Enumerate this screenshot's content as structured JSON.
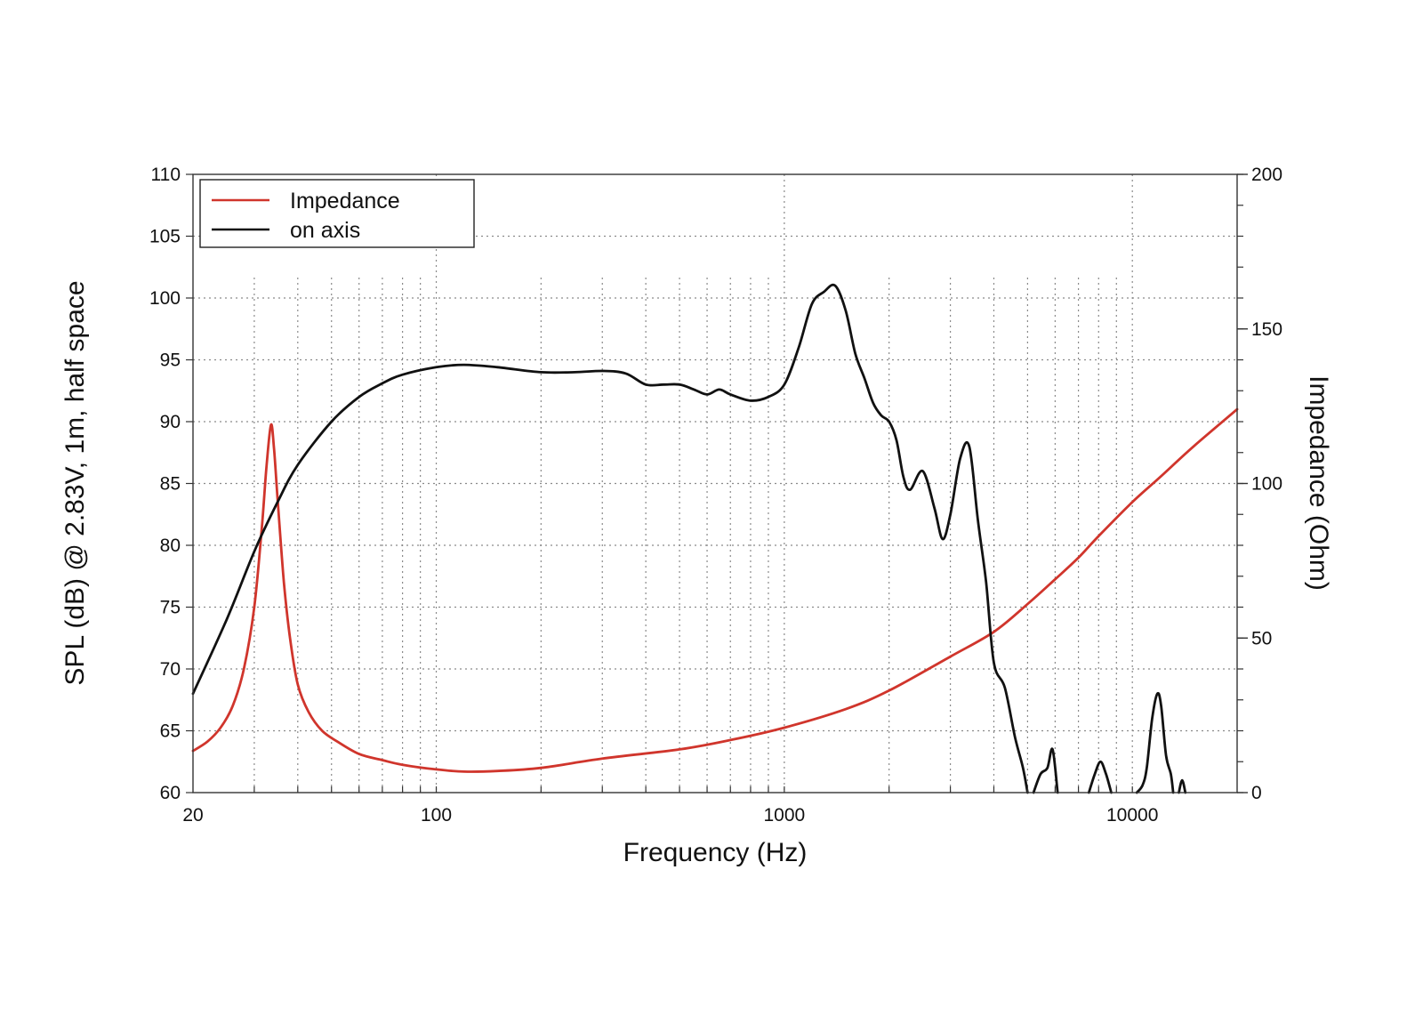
{
  "chart_data": {
    "type": "line",
    "xlabel": "Frequency (Hz)",
    "ylabel": "SPL (dB) @ 2.83V, 1m, half space",
    "y2label": "Impedance (Ohm)",
    "x_scale": "log",
    "xlim": [
      20,
      20000
    ],
    "ylim": [
      60,
      110
    ],
    "y2lim": [
      0,
      200
    ],
    "x_ticks": [
      "20",
      "100",
      "1000",
      "10000"
    ],
    "y_ticks": [
      "60",
      "65",
      "70",
      "75",
      "80",
      "85",
      "90",
      "95",
      "100",
      "105",
      "110"
    ],
    "y2_ticks": [
      "0",
      "50",
      "100",
      "150",
      "200"
    ],
    "grid": true,
    "legend_position": "top-left",
    "series": [
      {
        "name": "Impedance",
        "axis": "right",
        "color": "#d0352c",
        "points": [
          [
            20,
            13.5
          ],
          [
            22,
            16.5
          ],
          [
            24,
            21
          ],
          [
            26,
            28
          ],
          [
            28,
            40
          ],
          [
            30,
            60
          ],
          [
            31.5,
            85
          ],
          [
            32.5,
            105
          ],
          [
            33.5,
            119
          ],
          [
            34.2,
            111
          ],
          [
            35,
            95
          ],
          [
            36.5,
            68
          ],
          [
            38,
            50
          ],
          [
            40,
            35
          ],
          [
            43,
            26
          ],
          [
            47,
            20
          ],
          [
            52,
            16.5
          ],
          [
            60,
            12.5
          ],
          [
            70,
            10.5
          ],
          [
            80,
            9
          ],
          [
            100,
            7.5
          ],
          [
            120,
            6.8
          ],
          [
            150,
            7
          ],
          [
            200,
            8
          ],
          [
            300,
            11
          ],
          [
            500,
            14
          ],
          [
            700,
            17
          ],
          [
            1000,
            21
          ],
          [
            1500,
            27
          ],
          [
            2000,
            33
          ],
          [
            3000,
            44
          ],
          [
            4000,
            52
          ],
          [
            5000,
            61
          ],
          [
            6000,
            69
          ],
          [
            7000,
            76
          ],
          [
            8000,
            83
          ],
          [
            10000,
            94
          ],
          [
            12000,
            102
          ],
          [
            15000,
            112
          ],
          [
            20000,
            124
          ]
        ]
      },
      {
        "name": "on axis",
        "color": "#111111",
        "points": [
          [
            20,
            68.0
          ],
          [
            25,
            74.0
          ],
          [
            30,
            79.5
          ],
          [
            35,
            83.5
          ],
          [
            40,
            86.5
          ],
          [
            50,
            90.0
          ],
          [
            60,
            92.0
          ],
          [
            70,
            93.1
          ],
          [
            80,
            93.8
          ],
          [
            100,
            94.4
          ],
          [
            120,
            94.6
          ],
          [
            150,
            94.4
          ],
          [
            200,
            94.0
          ],
          [
            250,
            94.0
          ],
          [
            300,
            94.1
          ],
          [
            350,
            93.9
          ],
          [
            400,
            93.0
          ],
          [
            450,
            93.0
          ],
          [
            500,
            93.0
          ],
          [
            550,
            92.6
          ],
          [
            600,
            92.2
          ],
          [
            650,
            92.6
          ],
          [
            700,
            92.2
          ],
          [
            800,
            91.7
          ],
          [
            900,
            92.0
          ],
          [
            1000,
            93.0
          ],
          [
            1100,
            96.0
          ],
          [
            1200,
            99.5
          ],
          [
            1300,
            100.5
          ],
          [
            1400,
            101.0
          ],
          [
            1500,
            99.0
          ],
          [
            1600,
            95.5
          ],
          [
            1700,
            93.5
          ],
          [
            1800,
            91.5
          ],
          [
            1900,
            90.5
          ],
          [
            2000,
            90.0
          ],
          [
            2100,
            88.5
          ],
          [
            2200,
            85.5
          ],
          [
            2300,
            84.5
          ],
          [
            2500,
            86.0
          ],
          [
            2700,
            83.0
          ],
          [
            2850,
            80.5
          ],
          [
            3000,
            82.5
          ],
          [
            3200,
            87.0
          ],
          [
            3400,
            88.0
          ],
          [
            3600,
            82.0
          ],
          [
            3800,
            77.0
          ],
          [
            4000,
            70.5
          ],
          [
            4300,
            68.5
          ],
          [
            4600,
            64.5
          ],
          [
            4850,
            62.0
          ],
          [
            5000,
            60.0
          ]
        ]
      },
      {
        "name": "on axis",
        "color": "#111111",
        "points": [
          [
            5200,
            60.0
          ],
          [
            5450,
            61.5
          ],
          [
            5700,
            62.0
          ],
          [
            5900,
            63.5
          ],
          [
            6100,
            60.0
          ]
        ]
      },
      {
        "name": "on axis",
        "color": "#111111",
        "points": [
          [
            7500,
            60.0
          ],
          [
            7800,
            61.5
          ],
          [
            8100,
            62.5
          ],
          [
            8400,
            61.5
          ],
          [
            8700,
            60.0
          ]
        ]
      },
      {
        "name": "on axis",
        "color": "#111111",
        "points": [
          [
            10300,
            60.0
          ],
          [
            10700,
            60.6
          ],
          [
            11000,
            62.0
          ],
          [
            11400,
            66.0
          ],
          [
            11800,
            68.0
          ],
          [
            12100,
            67.0
          ],
          [
            12500,
            63.0
          ],
          [
            12900,
            61.5
          ],
          [
            13100,
            60.0
          ]
        ]
      },
      {
        "name": "on axis",
        "color": "#111111",
        "points": [
          [
            13600,
            60.0
          ],
          [
            13900,
            61.0
          ],
          [
            14200,
            60.0
          ]
        ]
      }
    ],
    "legend": [
      {
        "label": "Impedance",
        "color": "#d0352c"
      },
      {
        "label": "on axis",
        "color": "#111111"
      }
    ]
  }
}
